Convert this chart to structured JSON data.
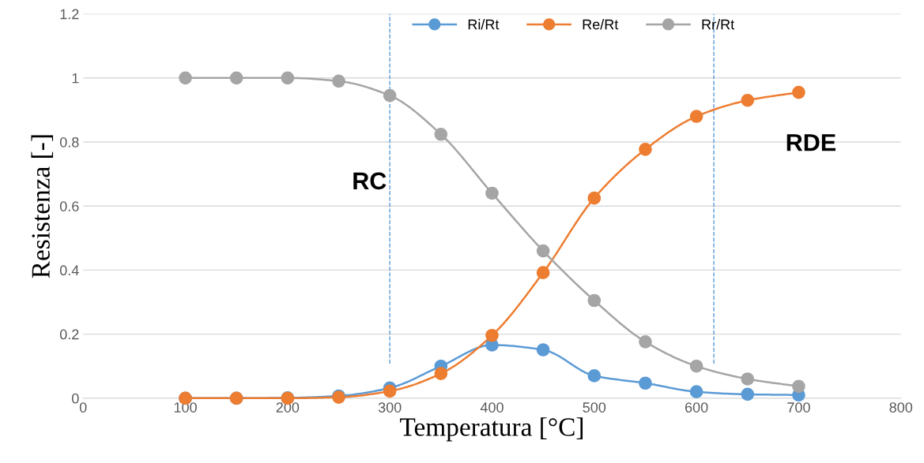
{
  "chart_data": {
    "type": "line",
    "xlabel": "Temperatura [°C]",
    "ylabel": "Resistenza [-]",
    "x": [
      100,
      150,
      200,
      250,
      300,
      350,
      400,
      450,
      500,
      550,
      600,
      650,
      700
    ],
    "series": [
      {
        "name": "Ri/Rt",
        "color": "#5b9bd5",
        "values": [
          0,
          0,
          0.001,
          0.007,
          0.032,
          0.1,
          0.166,
          0.151,
          0.07,
          0.047,
          0.02,
          0.012,
          0.01
        ]
      },
      {
        "name": "Re/Rt",
        "color": "#ed7d31",
        "values": [
          0,
          0,
          0,
          0.003,
          0.022,
          0.077,
          0.196,
          0.392,
          0.625,
          0.777,
          0.88,
          0.93,
          0.955
        ]
      },
      {
        "name": "Rr/Rt",
        "color": "#a5a5a5",
        "values": [
          1,
          1,
          1,
          0.99,
          0.945,
          0.824,
          0.64,
          0.46,
          0.305,
          0.176,
          0.1,
          0.06,
          0.037
        ]
      }
    ],
    "xlim": [
      0,
      800
    ],
    "xticks": [
      0,
      100,
      200,
      300,
      400,
      500,
      600,
      700,
      800
    ],
    "ylim": [
      0,
      1.2
    ],
    "yticks": [
      0,
      0.2,
      0.4,
      0.6,
      0.8,
      1,
      1.2
    ],
    "ref_lines": [
      {
        "axis": "x",
        "value": 300,
        "color": "#5b9bd5",
        "line_style": "dashed"
      },
      {
        "axis": "x",
        "value": 617,
        "color": "#5b9bd5",
        "line_style": "dashed"
      }
    ],
    "annotations": [
      "RC",
      "RDE"
    ],
    "grid": "y",
    "legend": "top",
    "marker": "circle",
    "line_style": "solid"
  }
}
